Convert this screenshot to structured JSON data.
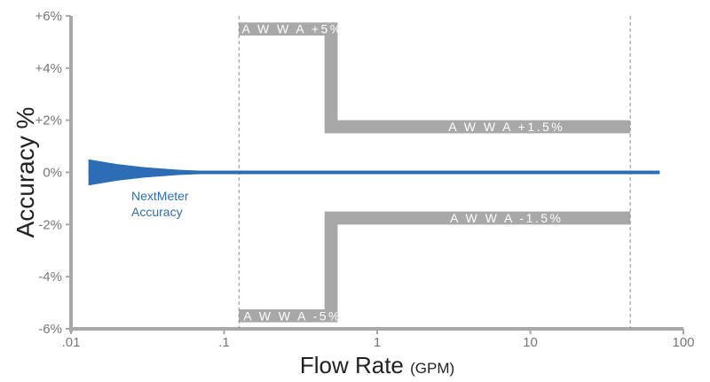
{
  "chart_data": {
    "type": "line",
    "xscale": "log",
    "xlim": [
      0.01,
      100
    ],
    "ylim": [
      -6,
      6
    ],
    "xlabel": "Flow Rate",
    "xlabel_unit": "(GPM)",
    "ylabel": "Accuracy %",
    "x_ticks": [
      0.01,
      0.1,
      1,
      10,
      100
    ],
    "x_tick_labels": [
      ".01",
      ".1",
      "1",
      "10",
      "100"
    ],
    "y_ticks": [
      6,
      4,
      2,
      0,
      -2,
      -4,
      -6
    ],
    "y_tick_labels": [
      "+6%",
      "+4%",
      "+2%",
      "0%",
      "-2%",
      "-4%",
      "-6%"
    ],
    "vertical_reference_lines": [
      0.125,
      45
    ],
    "envelope": {
      "name": "NextMeter Accuracy",
      "label_lines": [
        "NextMeter",
        "Accuracy"
      ],
      "color": "#2d6db5",
      "x": [
        0.013,
        0.02,
        0.03,
        0.05,
        0.08,
        0.12,
        0.2,
        70
      ],
      "upper": [
        0.5,
        0.32,
        0.2,
        0.1,
        0.05,
        0.03,
        0.03,
        0.03
      ],
      "lower": [
        -0.5,
        -0.32,
        -0.2,
        -0.1,
        -0.05,
        -0.03,
        -0.03,
        -0.03
      ]
    },
    "awwa_bands": [
      {
        "label": "A W W A  +5%",
        "color": "#a8a8a8",
        "x": [
          0.125,
          0.5,
          0.5,
          45
        ],
        "y": [
          5.5,
          5.5,
          1.75,
          1.75
        ],
        "thickness": 0.5
      },
      {
        "label": "A W W A  -5%",
        "color": "#a8a8a8",
        "x": [
          0.125,
          0.5,
          0.5,
          45
        ],
        "y": [
          -5.5,
          -5.5,
          -1.75,
          -1.75
        ],
        "thickness": 0.5
      }
    ],
    "band_labels": [
      {
        "text": "A W W A  +5%",
        "x": 0.28,
        "y": 5.5
      },
      {
        "text": "A W W A  +1.5%",
        "x": 7,
        "y": 1.75
      },
      {
        "text": "A W W A  -1.5%",
        "x": 7,
        "y": -1.75
      },
      {
        "text": "A W W A  -5%",
        "x": 0.28,
        "y": -5.5
      }
    ]
  }
}
